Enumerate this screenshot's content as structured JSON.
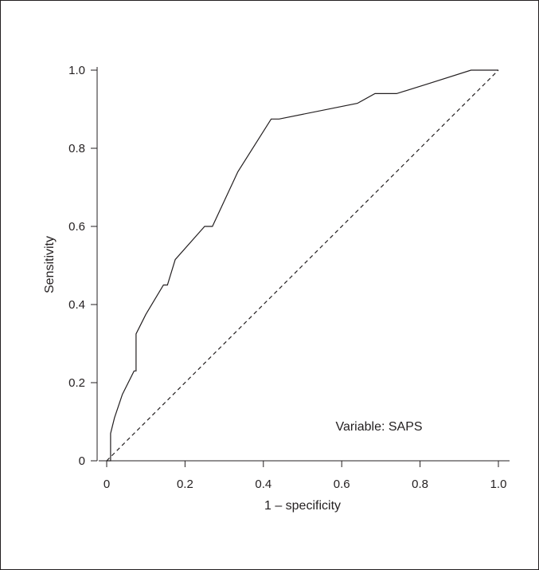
{
  "chart_data": {
    "type": "line",
    "xlabel": "1 – specificity",
    "ylabel": "Sensitivity",
    "xlim": [
      0,
      1
    ],
    "ylim": [
      0,
      1
    ],
    "x_ticks": [
      "0",
      "0.2",
      "0.4",
      "0.6",
      "0.8",
      "1.0"
    ],
    "y_ticks": [
      "0",
      "0.2",
      "0.4",
      "0.6",
      "0.8",
      "1.0"
    ],
    "annotation": "Variable: SAPS",
    "grid": false,
    "series": [
      {
        "style": "solid",
        "x": [
          0.0,
          0.01,
          0.01,
          0.02,
          0.04,
          0.07,
          0.075,
          0.075,
          0.1,
          0.145,
          0.155,
          0.175,
          0.25,
          0.27,
          0.335,
          0.42,
          0.44,
          0.64,
          0.685,
          0.74,
          0.82,
          0.93,
          1.0
        ],
        "y": [
          0.0,
          0.0,
          0.07,
          0.11,
          0.17,
          0.23,
          0.23,
          0.325,
          0.375,
          0.45,
          0.45,
          0.515,
          0.6,
          0.6,
          0.74,
          0.875,
          0.875,
          0.915,
          0.94,
          0.94,
          0.965,
          1.0,
          1.0
        ]
      },
      {
        "style": "dashed",
        "x": [
          0.0,
          1.0
        ],
        "y": [
          0.0,
          1.0
        ]
      }
    ]
  }
}
